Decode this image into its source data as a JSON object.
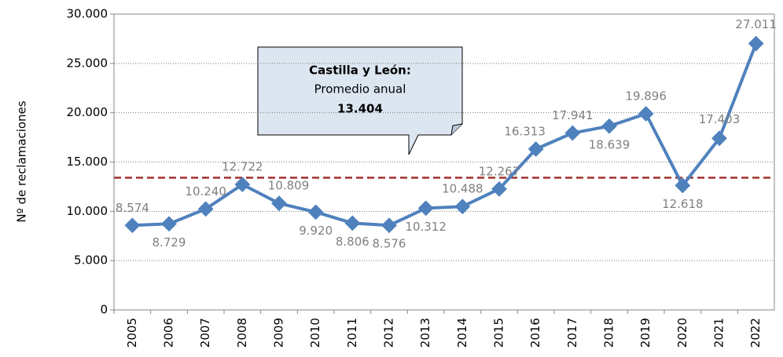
{
  "chart_data": {
    "type": "line",
    "y_label": "Nº de reclamaciones",
    "categories": [
      "2005",
      "2006",
      "2007",
      "2008",
      "2009",
      "2010",
      "2011",
      "2012",
      "2013",
      "2014",
      "2015",
      "2016",
      "2017",
      "2018",
      "2019",
      "2020",
      "2021",
      "2022"
    ],
    "series": [
      {
        "name": "Reclamaciones",
        "color": "#4f81bd",
        "values": [
          8574,
          8729,
          10240,
          12722,
          10809,
          9920,
          8806,
          8576,
          10312,
          10488,
          12267,
          16313,
          17941,
          18639,
          19896,
          12618,
          17403,
          27011
        ],
        "value_labels": [
          "8.574",
          "8.729",
          "10.240",
          "12.722",
          "10.809",
          "9.920",
          "8.806",
          "8.576",
          "10.312",
          "10.488",
          "12.267",
          "16.313",
          "17.941",
          "18.639",
          "19.896",
          "12.618",
          "17.403",
          "27.011"
        ]
      }
    ],
    "ylim": [
      0,
      30000
    ],
    "yticks": [
      0,
      {
        "value": 5000,
        "label": "5.000"
      },
      {
        "value": 10000,
        "label": "10.000"
      },
      {
        "value": 15000,
        "label": "15.000"
      },
      {
        "value": 20000,
        "label": "20.000"
      },
      {
        "value": 25000,
        "label": "25.000"
      },
      {
        "value": 30000,
        "label": "30.000"
      }
    ],
    "grid": true,
    "reference_line": {
      "value": 13404,
      "label": "13.404",
      "color": "#a0302a"
    },
    "callout": {
      "title": "Castilla y León:",
      "text": "Promedio anual"
    }
  }
}
